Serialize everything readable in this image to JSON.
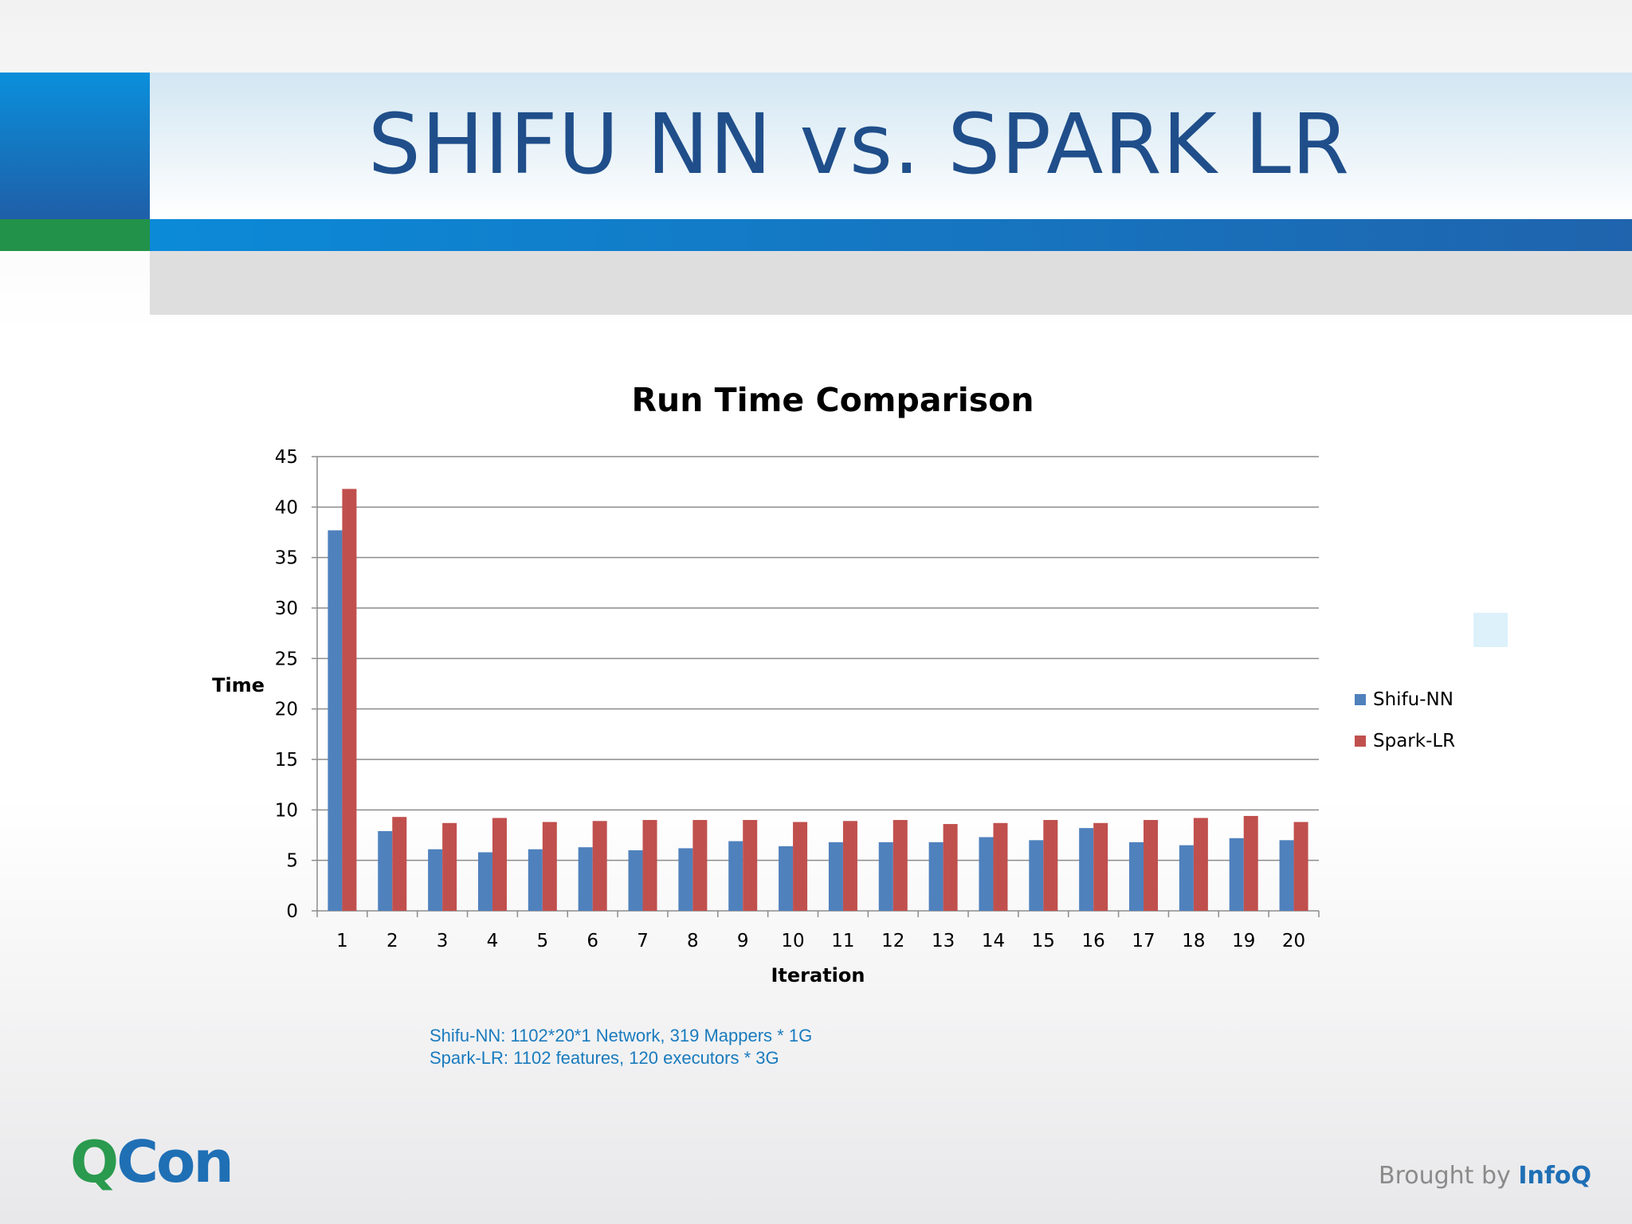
{
  "slide": {
    "title": "SHIFU NN vs. SPARK LR",
    "notes": [
      "Shifu-NN: 1102*20*1 Network, 319 Mappers * 1G",
      "Spark-LR: 1102 features, 120 executors * 3G"
    ],
    "footer": {
      "logo_q": "Q",
      "logo_con": "Con",
      "brought_by": "Brought by ",
      "brand": "InfoQ"
    }
  },
  "chart_data": {
    "type": "bar",
    "title": "Run Time Comparison",
    "xlabel": "Iteration",
    "ylabel": "Time",
    "ylim": [
      0,
      45
    ],
    "yticks": [
      0,
      5,
      10,
      15,
      20,
      25,
      30,
      35,
      40,
      45
    ],
    "grid": true,
    "legend_position": "right",
    "categories": [
      "1",
      "2",
      "3",
      "4",
      "5",
      "6",
      "7",
      "8",
      "9",
      "10",
      "11",
      "12",
      "13",
      "14",
      "15",
      "16",
      "17",
      "18",
      "19",
      "20"
    ],
    "series": [
      {
        "name": "Shifu-NN",
        "color": "#4f81bd",
        "values": [
          37.7,
          7.9,
          6.1,
          5.8,
          6.1,
          6.3,
          6.0,
          6.2,
          6.9,
          6.4,
          6.8,
          6.8,
          6.8,
          7.3,
          7.0,
          8.2,
          6.8,
          6.5,
          7.2,
          7.0
        ]
      },
      {
        "name": "Spark-LR",
        "color": "#c0504d",
        "values": [
          41.8,
          9.3,
          8.7,
          9.2,
          8.8,
          8.9,
          9.0,
          9.0,
          9.0,
          8.8,
          8.9,
          9.0,
          8.6,
          8.7,
          9.0,
          8.7,
          9.0,
          9.2,
          9.4,
          8.8
        ]
      }
    ]
  }
}
